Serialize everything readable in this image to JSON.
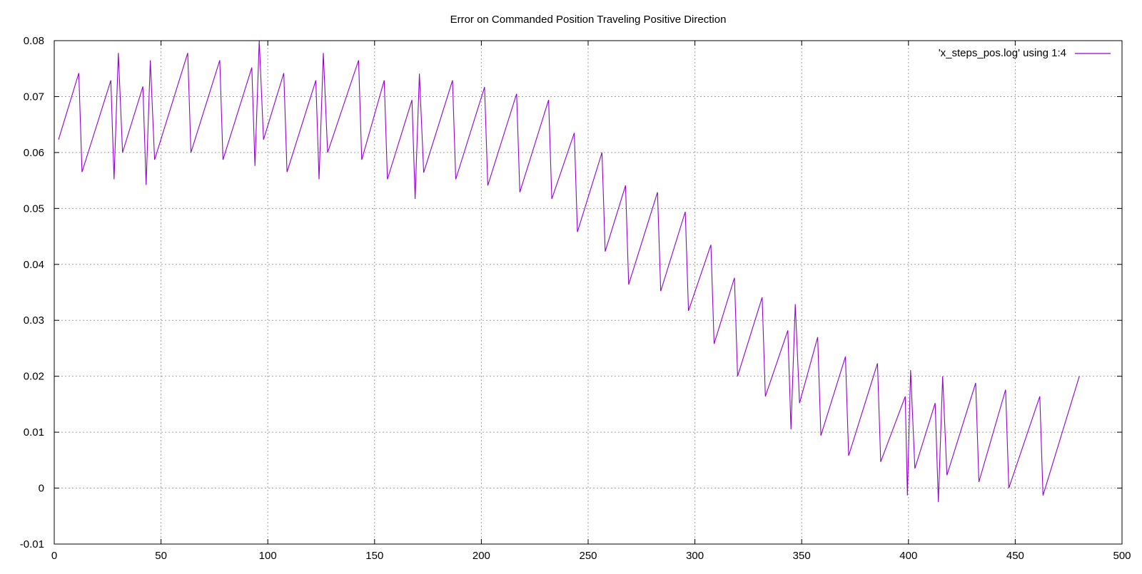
{
  "chart_data": {
    "type": "line",
    "title": "Error on Commanded Position Traveling Positive Direction",
    "xlabel": "",
    "ylabel": "",
    "xlim": [
      0,
      500
    ],
    "ylim": [
      -0.01,
      0.08
    ],
    "x_ticks": [
      0,
      50,
      100,
      150,
      200,
      250,
      300,
      350,
      400,
      450,
      500
    ],
    "y_ticks": [
      -0.01,
      0,
      0.01,
      0.02,
      0.03,
      0.04,
      0.05,
      0.06,
      0.07,
      0.08
    ],
    "x_tick_labels": [
      "0",
      "50",
      "100",
      "150",
      "200",
      "250",
      "300",
      "350",
      "400",
      "450",
      "500"
    ],
    "y_tick_labels": [
      "-0.01",
      "0",
      "0.01",
      "0.02",
      "0.03",
      "0.04",
      "0.05",
      "0.06",
      "0.07",
      "0.08"
    ],
    "grid": true,
    "legend_position": "top-right",
    "series": [
      {
        "name": "'x_steps_pos.log' using 1:4",
        "color": "#9400d3",
        "points": [
          [
            2,
            0.0623
          ],
          [
            11.5,
            0.0742
          ],
          [
            13,
            0.0565
          ],
          [
            26.5,
            0.0729
          ],
          [
            28,
            0.0552
          ],
          [
            30,
            0.0778
          ],
          [
            32,
            0.06
          ],
          [
            41.5,
            0.0718
          ],
          [
            43,
            0.0542
          ],
          [
            45,
            0.0765
          ],
          [
            47,
            0.0587
          ],
          [
            62.5,
            0.0778
          ],
          [
            64,
            0.06
          ],
          [
            77.5,
            0.0765
          ],
          [
            79,
            0.0587
          ],
          [
            92.5,
            0.0752
          ],
          [
            94,
            0.0576
          ],
          [
            96,
            0.08
          ],
          [
            98,
            0.0623
          ],
          [
            107.5,
            0.0742
          ],
          [
            109,
            0.0565
          ],
          [
            122.5,
            0.0729
          ],
          [
            124,
            0.0552
          ],
          [
            126,
            0.0778
          ],
          [
            128,
            0.06
          ],
          [
            142.5,
            0.0765
          ],
          [
            144,
            0.0587
          ],
          [
            154.5,
            0.0729
          ],
          [
            156,
            0.0552
          ],
          [
            167.5,
            0.0694
          ],
          [
            169,
            0.0517
          ],
          [
            171,
            0.0741
          ],
          [
            173,
            0.0564
          ],
          [
            186.5,
            0.0729
          ],
          [
            188,
            0.0552
          ],
          [
            201.5,
            0.0717
          ],
          [
            203,
            0.0541
          ],
          [
            216.5,
            0.0705
          ],
          [
            218,
            0.0529
          ],
          [
            231.5,
            0.0694
          ],
          [
            233,
            0.0517
          ],
          [
            243.5,
            0.0635
          ],
          [
            245,
            0.0458
          ],
          [
            256.5,
            0.06
          ],
          [
            258,
            0.0423
          ],
          [
            267.5,
            0.0541
          ],
          [
            269,
            0.0364
          ],
          [
            282.5,
            0.0529
          ],
          [
            284,
            0.0352
          ],
          [
            295.5,
            0.0494
          ],
          [
            297,
            0.0317
          ],
          [
            307.5,
            0.0435
          ],
          [
            309,
            0.0258
          ],
          [
            318.5,
            0.0376
          ],
          [
            320,
            0.02
          ],
          [
            331.5,
            0.0341
          ],
          [
            333,
            0.0164
          ],
          [
            343.5,
            0.0282
          ],
          [
            345,
            0.0105
          ],
          [
            347,
            0.0329
          ],
          [
            349,
            0.0152
          ],
          [
            357.5,
            0.027
          ],
          [
            359,
            0.0094
          ],
          [
            370.5,
            0.0235
          ],
          [
            372,
            0.0058
          ],
          [
            385.5,
            0.0223
          ],
          [
            387,
            0.0047
          ],
          [
            398.5,
            0.0164
          ],
          [
            399.5,
            -0.0013
          ],
          [
            401,
            0.0211
          ],
          [
            403,
            0.0035
          ],
          [
            412.5,
            0.0152
          ],
          [
            414,
            -0.0025
          ],
          [
            416,
            0.02
          ],
          [
            418,
            0.0023
          ],
          [
            431.5,
            0.0188
          ],
          [
            433,
            0.0011
          ],
          [
            445.5,
            0.0176
          ],
          [
            447,
            0.0
          ],
          [
            461.5,
            0.0164
          ],
          [
            463,
            -0.0013
          ],
          [
            480,
            0.02
          ]
        ]
      }
    ]
  }
}
